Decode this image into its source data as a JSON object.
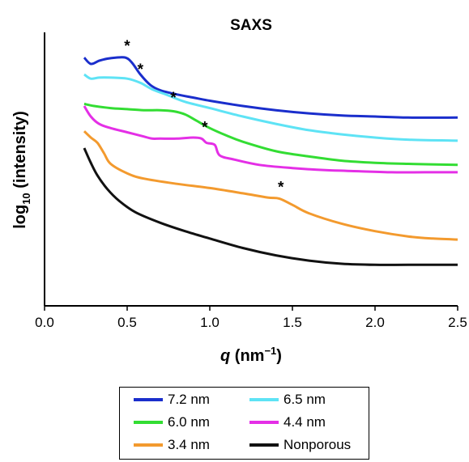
{
  "chart_data": {
    "type": "line",
    "title": "SAXS",
    "xlabel": "q (nm⁻¹)",
    "xlabel_parts": {
      "symbol": "q",
      "unit": "(nm",
      "sup": "−1",
      "close": ")"
    },
    "ylabel": "log10 (intensity)",
    "ylabel_parts": {
      "base": "log",
      "sub": "10",
      "rest": " (intensity)"
    },
    "xlim": [
      0.0,
      2.5
    ],
    "xticks": [
      "0.0",
      "0.5",
      "1.0",
      "1.5",
      "2.0",
      "2.5"
    ],
    "y_tick_labels": false,
    "grid": false,
    "legend_position": "bottom",
    "peak_marker": "*",
    "series": [
      {
        "name": "7.2 nm",
        "color": "#1a2ecc",
        "x": [
          0.24,
          0.28,
          0.33,
          0.38,
          0.43,
          0.49,
          0.53,
          0.58,
          0.64,
          0.7,
          0.8,
          0.9,
          1.0,
          1.2,
          1.4,
          1.6,
          1.8,
          2.0,
          2.2,
          2.5
        ],
        "y": [
          8.1,
          7.8,
          7.95,
          8.05,
          8.1,
          8.1,
          7.85,
          7.3,
          6.8,
          6.55,
          6.35,
          6.2,
          6.05,
          5.8,
          5.6,
          5.45,
          5.35,
          5.3,
          5.25,
          5.25
        ],
        "peak_x": 0.49,
        "peak_y": 8.1
      },
      {
        "name": "6.5 nm",
        "color": "#5ee3f5",
        "x": [
          0.24,
          0.28,
          0.33,
          0.4,
          0.5,
          0.58,
          0.65,
          0.75,
          0.85,
          1.0,
          1.2,
          1.4,
          1.6,
          1.8,
          2.0,
          2.2,
          2.5
        ],
        "y": [
          7.3,
          7.1,
          7.15,
          7.15,
          7.1,
          6.9,
          6.6,
          6.3,
          6.0,
          5.7,
          5.3,
          4.95,
          4.65,
          4.45,
          4.3,
          4.2,
          4.15
        ],
        "peak_x": 0.57,
        "peak_y": 7.0
      },
      {
        "name": "6.0 nm",
        "color": "#33dd33",
        "x": [
          0.24,
          0.3,
          0.4,
          0.5,
          0.6,
          0.7,
          0.78,
          0.85,
          0.92,
          1.0,
          1.1,
          1.2,
          1.4,
          1.6,
          1.8,
          2.0,
          2.2,
          2.5
        ],
        "y": [
          5.9,
          5.8,
          5.7,
          5.65,
          5.6,
          5.6,
          5.55,
          5.4,
          5.1,
          4.75,
          4.4,
          4.1,
          3.65,
          3.4,
          3.2,
          3.1,
          3.05,
          3.0
        ],
        "peak_x": 0.77,
        "peak_y": 5.65
      },
      {
        "name": "4.4 nm",
        "color": "#e42fe6",
        "x": [
          0.24,
          0.28,
          0.33,
          0.4,
          0.5,
          0.6,
          0.65,
          0.7,
          0.8,
          0.9,
          0.95,
          0.98,
          1.03,
          1.06,
          1.15,
          1.3,
          1.5,
          1.7,
          1.9,
          2.1,
          2.3,
          2.5
        ],
        "y": [
          5.8,
          5.3,
          4.95,
          4.75,
          4.55,
          4.35,
          4.25,
          4.25,
          4.25,
          4.3,
          4.25,
          4.05,
          3.95,
          3.45,
          3.25,
          3.0,
          2.85,
          2.75,
          2.7,
          2.65,
          2.65,
          2.65
        ],
        "peak_x": 0.96,
        "peak_y": 4.25
      },
      {
        "name": "3.4 nm",
        "color": "#f39a2e",
        "x": [
          0.24,
          0.28,
          0.32,
          0.36,
          0.4,
          0.5,
          0.6,
          0.8,
          1.0,
          1.2,
          1.35,
          1.42,
          1.5,
          1.6,
          1.8,
          2.0,
          2.2,
          2.35,
          2.5
        ],
        "y": [
          4.6,
          4.3,
          4.05,
          3.55,
          3.05,
          2.6,
          2.35,
          2.1,
          1.9,
          1.65,
          1.45,
          1.4,
          1.1,
          0.7,
          0.2,
          -0.15,
          -0.4,
          -0.5,
          -0.55
        ],
        "peak_x": 1.42,
        "peak_y": 1.4
      },
      {
        "name": "Nonporous",
        "color": "#111111",
        "x": [
          0.24,
          0.28,
          0.32,
          0.38,
          0.45,
          0.55,
          0.7,
          0.85,
          1.0,
          1.2,
          1.4,
          1.6,
          1.8,
          2.0,
          2.2,
          2.5
        ],
        "y": [
          3.8,
          3.1,
          2.5,
          1.85,
          1.3,
          0.75,
          0.25,
          -0.15,
          -0.5,
          -0.95,
          -1.3,
          -1.55,
          -1.7,
          -1.75,
          -1.75,
          -1.75
        ],
        "peak_x": null,
        "peak_y": null
      }
    ]
  }
}
